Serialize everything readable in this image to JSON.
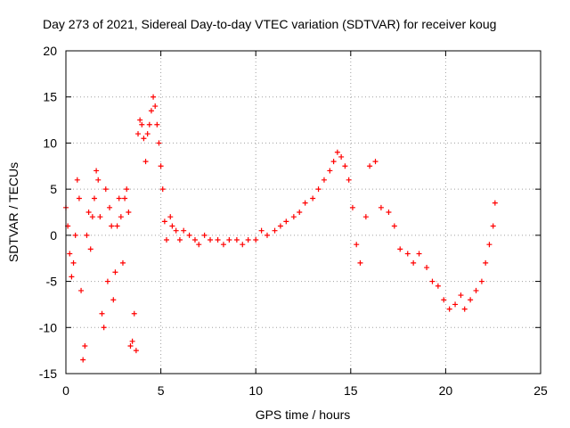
{
  "chart_data": {
    "type": "scatter",
    "title": "Day 273 of 2021, Sidereal Day-to-day VTEC variation (SDTVAR) for receiver koug",
    "xlabel": "GPS time / hours",
    "ylabel": "SDTVAR / TECUs",
    "xlim": [
      0,
      25
    ],
    "ylim": [
      -15,
      20
    ],
    "xticks": [
      0,
      5,
      10,
      15,
      20,
      25
    ],
    "yticks": [
      -15,
      -10,
      -5,
      0,
      5,
      10,
      15,
      20
    ],
    "grid": true,
    "marker": "plus",
    "color": "#ff0000",
    "series": [
      {
        "name": "SDTVAR",
        "x": [
          0.0,
          0.1,
          0.2,
          0.3,
          0.4,
          0.5,
          0.6,
          0.7,
          0.8,
          0.9,
          1.0,
          1.1,
          1.2,
          1.3,
          1.4,
          1.5,
          1.6,
          1.7,
          1.8,
          1.9,
          2.0,
          2.1,
          2.2,
          2.3,
          2.4,
          2.5,
          2.6,
          2.7,
          2.8,
          2.9,
          3.0,
          3.1,
          3.2,
          3.3,
          3.4,
          3.5,
          3.6,
          3.7,
          3.8,
          3.9,
          4.0,
          4.1,
          4.2,
          4.3,
          4.4,
          4.5,
          4.6,
          4.7,
          4.8,
          4.9,
          5.0,
          5.1,
          5.2,
          5.3,
          5.5,
          5.6,
          5.8,
          6.0,
          6.2,
          6.5,
          6.8,
          7.0,
          7.3,
          7.6,
          8.0,
          8.3,
          8.6,
          9.0,
          9.3,
          9.6,
          10.0,
          10.3,
          10.6,
          11.0,
          11.3,
          11.6,
          12.0,
          12.3,
          12.6,
          13.0,
          13.3,
          13.6,
          13.9,
          14.1,
          14.3,
          14.5,
          14.7,
          14.9,
          15.1,
          15.3,
          15.5,
          15.8,
          16.0,
          16.3,
          16.6,
          17.0,
          17.3,
          17.6,
          18.0,
          18.3,
          18.6,
          19.0,
          19.3,
          19.6,
          19.9,
          20.2,
          20.5,
          20.8,
          21.0,
          21.3,
          21.6,
          21.9,
          22.1,
          22.3,
          22.5,
          22.6
        ],
        "y": [
          3.0,
          1.0,
          -2.0,
          -4.5,
          -3.0,
          0.0,
          6.0,
          4.0,
          -6.0,
          -13.5,
          -12.0,
          0.0,
          2.5,
          -1.5,
          2.0,
          4.0,
          7.0,
          6.0,
          2.0,
          -8.5,
          -10.0,
          5.0,
          -5.0,
          3.0,
          1.0,
          -7.0,
          -4.0,
          1.0,
          4.0,
          2.0,
          -3.0,
          4.0,
          5.0,
          2.5,
          -12.0,
          -11.5,
          -8.5,
          -12.5,
          11.0,
          12.5,
          12.0,
          10.5,
          8.0,
          11.0,
          12.0,
          13.5,
          15.0,
          14.0,
          12.0,
          10.0,
          7.5,
          5.0,
          1.5,
          -0.5,
          2.0,
          1.0,
          0.5,
          -0.5,
          0.5,
          0.0,
          -0.5,
          -1.0,
          0.0,
          -0.5,
          -0.5,
          -1.0,
          -0.5,
          -0.5,
          -1.0,
          -0.5,
          -0.5,
          0.5,
          0.0,
          0.5,
          1.0,
          1.5,
          2.0,
          2.5,
          3.5,
          4.0,
          5.0,
          6.0,
          7.0,
          8.0,
          9.0,
          8.5,
          7.5,
          6.0,
          3.0,
          -1.0,
          -3.0,
          2.0,
          7.5,
          8.0,
          3.0,
          2.5,
          1.0,
          -1.5,
          -2.0,
          -3.0,
          -2.0,
          -3.5,
          -5.0,
          -5.5,
          -7.0,
          -8.0,
          -7.5,
          -6.5,
          -8.0,
          -7.0,
          -6.0,
          -5.0,
          -3.0,
          -1.0,
          1.0,
          3.5
        ]
      }
    ]
  }
}
